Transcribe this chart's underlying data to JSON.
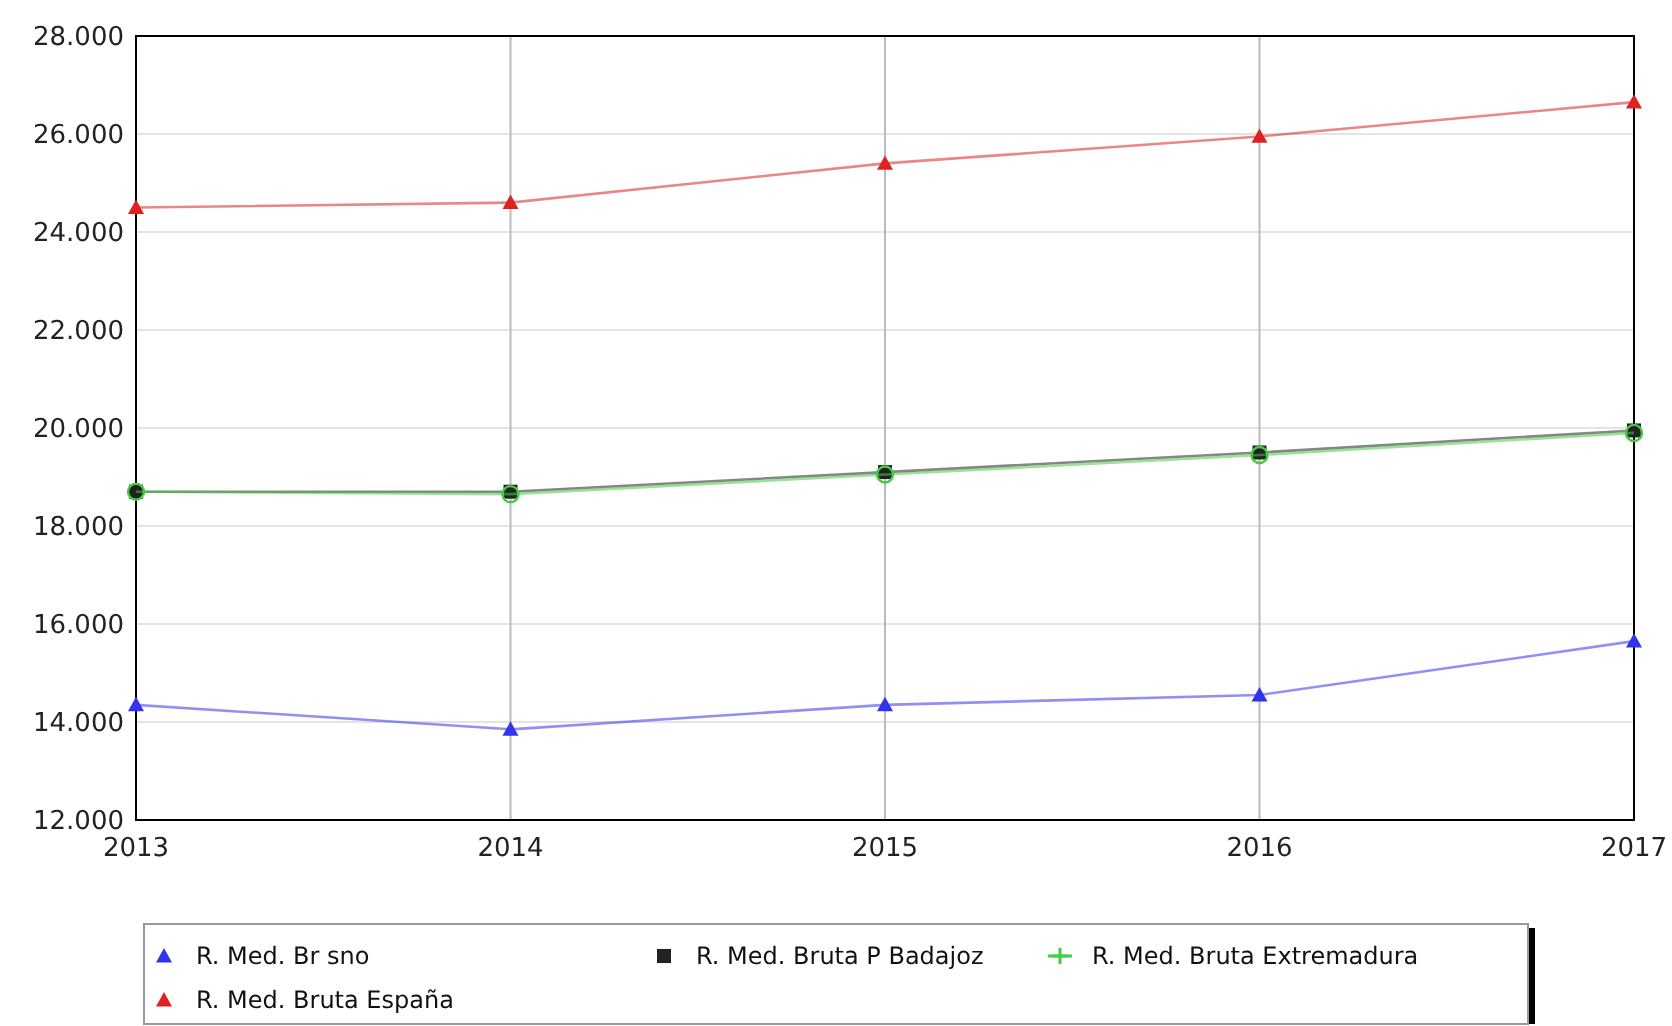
{
  "chart_data": {
    "type": "line",
    "x": [
      2013,
      2014,
      2015,
      2016,
      2017
    ],
    "xlim": [
      2013,
      2017
    ],
    "xticks": [
      2013,
      2014,
      2015,
      2016,
      2017
    ],
    "ylim": [
      12000,
      28000
    ],
    "yticks": [
      {
        "value": 12000,
        "label": "12.000"
      },
      {
        "value": 14000,
        "label": "14.000"
      },
      {
        "value": 16000,
        "label": "16.000"
      },
      {
        "value": 18000,
        "label": "18.000"
      },
      {
        "value": 20000,
        "label": "20.000"
      },
      {
        "value": 22000,
        "label": "22.000"
      },
      {
        "value": 24000,
        "label": "24.000"
      },
      {
        "value": 26000,
        "label": "26.000"
      },
      {
        "value": 28000,
        "label": "28.000"
      }
    ],
    "grid": true,
    "legend": "bottom",
    "series": [
      {
        "name": "R. Med. Br sno",
        "color": "#3333ee",
        "marker": "triangle",
        "values": [
          14350,
          13850,
          14350,
          14550,
          15650
        ]
      },
      {
        "name": "R. Med. Bruta P Badajoz",
        "color": "#222222",
        "marker": "square",
        "values": [
          18700,
          18700,
          19100,
          19500,
          19950
        ]
      },
      {
        "name": "R. Med. Bruta Extremadura",
        "color": "#44cc44",
        "marker": "circle",
        "values": [
          18700,
          18650,
          19050,
          19450,
          19900
        ]
      },
      {
        "name": "R. Med. Bruta España",
        "color": "#dd2222",
        "marker": "triangle",
        "values": [
          24500,
          24600,
          25400,
          25950,
          26650
        ]
      }
    ]
  }
}
